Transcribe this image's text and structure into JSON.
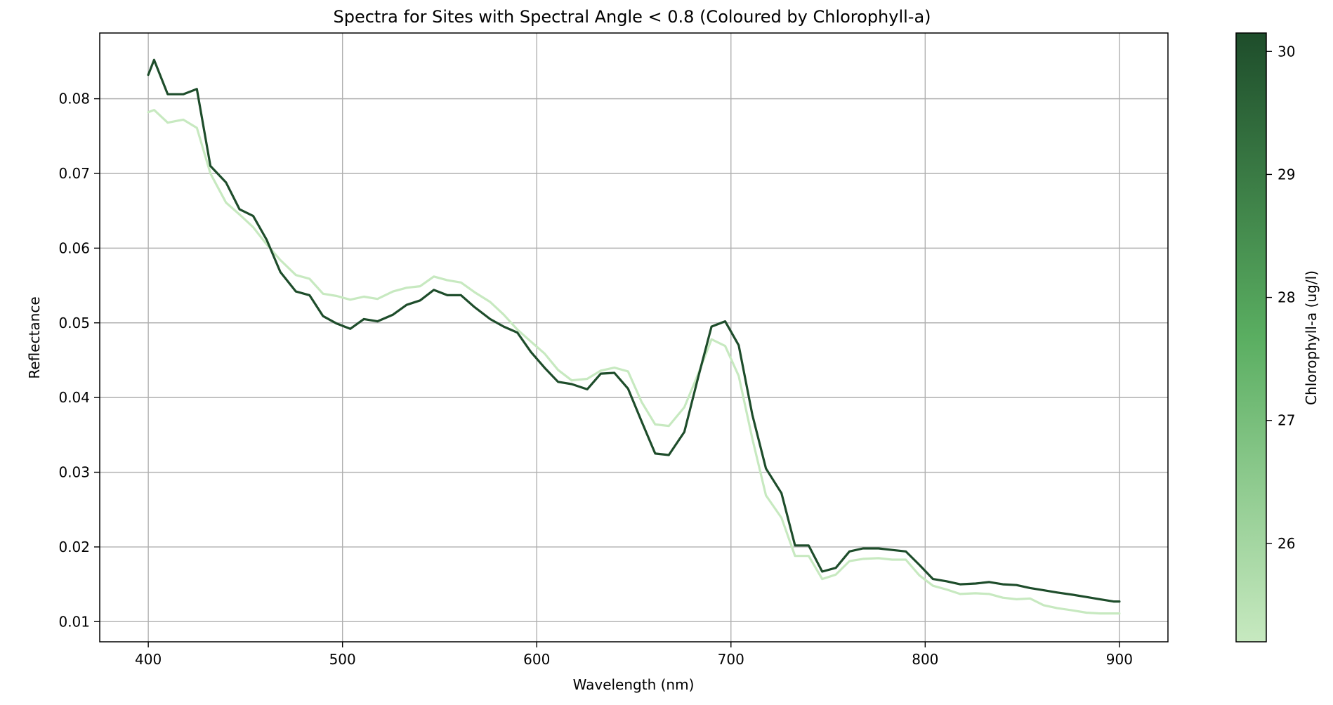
{
  "chart_data": {
    "type": "line",
    "title": "Spectra for Sites with Spectral Angle < 0.8 (Coloured by Chlorophyll-a)",
    "xlabel": "Wavelength (nm)",
    "ylabel": "Reflectance",
    "xlim": [
      375,
      925
    ],
    "ylim": [
      0.0073,
      0.0888
    ],
    "x_ticks": [
      400,
      500,
      600,
      700,
      800,
      900
    ],
    "x_tick_labels": [
      "400",
      "500",
      "600",
      "700",
      "800",
      "900"
    ],
    "y_ticks": [
      0.01,
      0.02,
      0.03,
      0.04,
      0.05,
      0.06,
      0.07,
      0.08
    ],
    "y_tick_labels": [
      "0.01",
      "0.02",
      "0.03",
      "0.04",
      "0.05",
      "0.06",
      "0.07",
      "0.08"
    ],
    "grid": true,
    "x": [
      400,
      403,
      410,
      418,
      425,
      432,
      440,
      447,
      454,
      461,
      468,
      476,
      483,
      490,
      497,
      504,
      511,
      518,
      526,
      533,
      540,
      547,
      554,
      561,
      568,
      576,
      583,
      590,
      597,
      604,
      611,
      618,
      626,
      633,
      640,
      647,
      654,
      661,
      668,
      676,
      683,
      690,
      697,
      704,
      711,
      718,
      726,
      733,
      740,
      747,
      754,
      761,
      768,
      776,
      783,
      790,
      797,
      804,
      811,
      818,
      826,
      833,
      840,
      847,
      854,
      861,
      868,
      876,
      883,
      890,
      897,
      900
    ],
    "series": [
      {
        "chlorophyll": 25.2,
        "color": "#c7e9c0",
        "values": [
          0.0782,
          0.0785,
          0.0768,
          0.0772,
          0.0761,
          0.07,
          0.0661,
          0.0645,
          0.0628,
          0.0605,
          0.0584,
          0.0564,
          0.0559,
          0.0539,
          0.0536,
          0.0531,
          0.0535,
          0.0532,
          0.0542,
          0.0547,
          0.0549,
          0.0562,
          0.0557,
          0.0554,
          0.0541,
          0.0528,
          0.0511,
          0.0491,
          0.0475,
          0.0459,
          0.0437,
          0.0423,
          0.0425,
          0.0436,
          0.044,
          0.0435,
          0.0394,
          0.0364,
          0.0362,
          0.0387,
          0.0431,
          0.0478,
          0.0469,
          0.0429,
          0.0345,
          0.0269,
          0.0239,
          0.0188,
          0.0188,
          0.0157,
          0.0163,
          0.0181,
          0.0184,
          0.0185,
          0.0183,
          0.0183,
          0.0162,
          0.0148,
          0.0143,
          0.0137,
          0.0138,
          0.0137,
          0.0132,
          0.013,
          0.0131,
          0.0122,
          0.0118,
          0.0115,
          0.0112,
          0.0111,
          0.0111,
          0.0111
        ]
      },
      {
        "chlorophyll": 30.1,
        "color": "#1e4d2b",
        "values": [
          0.0832,
          0.0852,
          0.0806,
          0.0806,
          0.0813,
          0.071,
          0.0688,
          0.0652,
          0.0643,
          0.0611,
          0.0568,
          0.0542,
          0.0537,
          0.0509,
          0.0499,
          0.0492,
          0.0505,
          0.0502,
          0.0511,
          0.0524,
          0.053,
          0.0544,
          0.0537,
          0.0537,
          0.0521,
          0.0505,
          0.0495,
          0.0487,
          0.0461,
          0.044,
          0.0421,
          0.0418,
          0.0411,
          0.0432,
          0.0433,
          0.0412,
          0.0368,
          0.0325,
          0.0323,
          0.0354,
          0.0426,
          0.0495,
          0.0502,
          0.047,
          0.0377,
          0.0305,
          0.0272,
          0.0202,
          0.0202,
          0.0167,
          0.0172,
          0.0194,
          0.0198,
          0.0198,
          0.0196,
          0.0194,
          0.0176,
          0.0157,
          0.0154,
          0.015,
          0.0151,
          0.0153,
          0.015,
          0.0149,
          0.0145,
          0.0142,
          0.0139,
          0.0136,
          0.0133,
          0.013,
          0.0127,
          0.0127
        ]
      }
    ],
    "colorbar": {
      "label": "Chlorophyll-a (ug/l)",
      "min": 25.2,
      "max": 30.15,
      "ticks": [
        26,
        27,
        28,
        29,
        30
      ],
      "tick_labels": [
        "26",
        "27",
        "28",
        "29",
        "30"
      ],
      "color_low": "#c7e9c0",
      "color_mid": "#5aae61",
      "color_high": "#1e4d2b"
    },
    "grid_color": "#b0b0b0"
  }
}
